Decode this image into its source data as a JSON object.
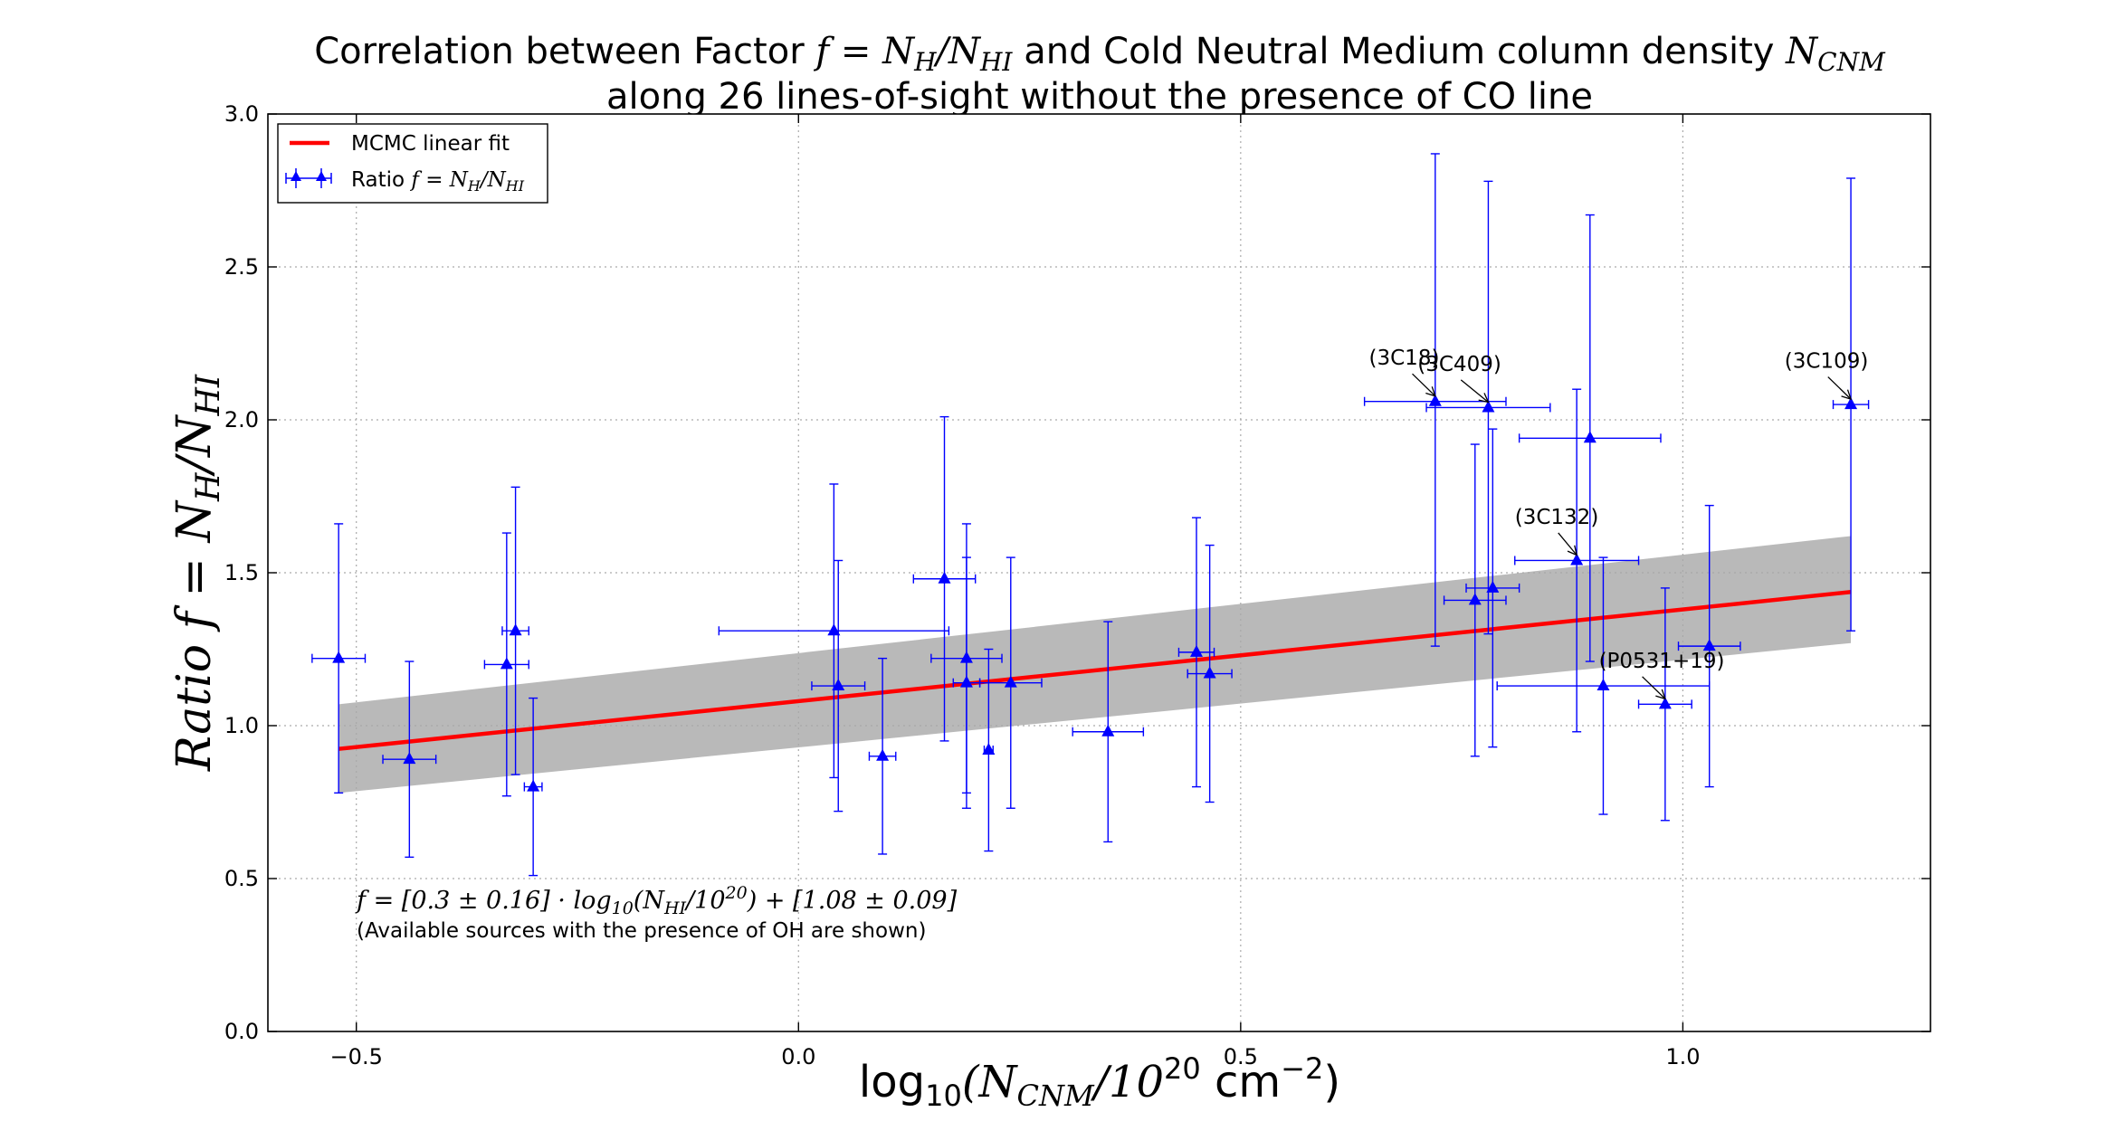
{
  "chart_data": {
    "type": "scatter",
    "title_prefix": "Correlation between Factor ",
    "title_math1": "f = N",
    "title_sub_h": "H",
    "title_slash": "/N",
    "title_sub_hi": "HI",
    "title_middle": " and Cold Neutral Medium column density ",
    "title_math2": "N",
    "title_sub_cnm": "CNM",
    "title_line2": "along 26 lines-of-sight without the presence of CO line",
    "xlabel_prefix": "log",
    "xlabel_sub": "10",
    "xlabel_math": "(N",
    "xlabel_sub_cnm": "CNM",
    "xlabel_rest": "/10",
    "xlabel_sup20": "20",
    "xlabel_unit": " cm",
    "xlabel_sup_neg2": "−2",
    "xlabel_close": ")",
    "ylabel_ratio": "Ratio",
    "ylabel_f": " f = N",
    "ylabel_sub_h": "H",
    "ylabel_slash": "/N",
    "ylabel_sub_hi": "HI",
    "xlim": [
      -0.6,
      1.28
    ],
    "ylim": [
      0.0,
      3.0
    ],
    "xticks": [
      -0.5,
      0.0,
      0.5,
      1.0
    ],
    "xtick_labels": [
      "−0.5",
      "0.0",
      "0.5",
      "1.0"
    ],
    "yticks": [
      0.0,
      0.5,
      1.0,
      1.5,
      2.0,
      2.5,
      3.0
    ],
    "ytick_labels": [
      "0.0",
      "0.5",
      "1.0",
      "1.5",
      "2.0",
      "2.5",
      "3.0"
    ],
    "grid": true,
    "legend_position": "top-left",
    "legend": {
      "fit_label": "MCMC linear fit",
      "ratio_label": "Ratio ",
      "ratio_math": "f = N",
      "ratio_sub_h": "H",
      "ratio_slash": "/N",
      "ratio_sub_hi": "HI"
    },
    "colors": {
      "points": "#0000ff",
      "fit": "#ff0000",
      "band": "#a8a8a8"
    },
    "fit": {
      "slope": 0.3,
      "intercept": 1.08,
      "x_range": [
        -0.52,
        1.19
      ]
    },
    "band": {
      "x": [
        -0.52,
        1.19
      ],
      "upper": [
        1.07,
        1.62
      ],
      "lower": [
        0.78,
        1.27
      ]
    },
    "series": [
      {
        "points": [
          {
            "x": -0.52,
            "y": 1.22,
            "xerr": 0.03,
            "yerr_lo": 0.44,
            "yerr_hi": 0.44
          },
          {
            "x": -0.44,
            "y": 0.89,
            "xerr": 0.03,
            "yerr_lo": 0.32,
            "yerr_hi": 0.32
          },
          {
            "x": -0.33,
            "y": 1.2,
            "xerr": 0.025,
            "yerr_lo": 0.43,
            "yerr_hi": 0.43
          },
          {
            "x": -0.32,
            "y": 1.31,
            "xerr": 0.015,
            "yerr_lo": 0.47,
            "yerr_hi": 0.47
          },
          {
            "x": -0.3,
            "y": 0.8,
            "xerr": 0.01,
            "yerr_lo": 0.29,
            "yerr_hi": 0.29
          },
          {
            "x": 0.04,
            "y": 1.31,
            "xerr": 0.13,
            "yerr_lo": 0.48,
            "yerr_hi": 0.48
          },
          {
            "x": 0.045,
            "y": 1.13,
            "xerr": 0.03,
            "yerr_lo": 0.41,
            "yerr_hi": 0.41
          },
          {
            "x": 0.095,
            "y": 0.9,
            "xerr": 0.015,
            "yerr_lo": 0.32,
            "yerr_hi": 0.32
          },
          {
            "x": 0.165,
            "y": 1.48,
            "xerr": 0.035,
            "yerr_lo": 0.53,
            "yerr_hi": 0.53
          },
          {
            "x": 0.19,
            "y": 1.22,
            "xerr": 0.04,
            "yerr_lo": 0.44,
            "yerr_hi": 0.44
          },
          {
            "x": 0.19,
            "y": 1.14,
            "xerr": 0.015,
            "yerr_lo": 0.41,
            "yerr_hi": 0.41
          },
          {
            "x": 0.215,
            "y": 0.92,
            "xerr": 0.005,
            "yerr_lo": 0.33,
            "yerr_hi": 0.33
          },
          {
            "x": 0.24,
            "y": 1.14,
            "xerr": 0.035,
            "yerr_lo": 0.41,
            "yerr_hi": 0.41
          },
          {
            "x": 0.35,
            "y": 0.98,
            "xerr": 0.04,
            "yerr_lo": 0.36,
            "yerr_hi": 0.36
          },
          {
            "x": 0.45,
            "y": 1.24,
            "xerr": 0.02,
            "yerr_lo": 0.44,
            "yerr_hi": 0.44
          },
          {
            "x": 0.465,
            "y": 1.17,
            "xerr": 0.025,
            "yerr_lo": 0.42,
            "yerr_hi": 0.42
          },
          {
            "x": 0.72,
            "y": 2.06,
            "xerr": 0.08,
            "yerr_lo": 0.8,
            "yerr_hi": 0.81
          },
          {
            "x": 0.765,
            "y": 1.41,
            "xerr": 0.035,
            "yerr_lo": 0.51,
            "yerr_hi": 0.51
          },
          {
            "x": 0.78,
            "y": 2.04,
            "xerr": 0.07,
            "yerr_lo": 0.74,
            "yerr_hi": 0.74
          },
          {
            "x": 0.785,
            "y": 1.45,
            "xerr": 0.03,
            "yerr_lo": 0.52,
            "yerr_hi": 0.52
          },
          {
            "x": 0.88,
            "y": 1.54,
            "xerr": 0.07,
            "yerr_lo": 0.56,
            "yerr_hi": 0.56
          },
          {
            "x": 0.895,
            "y": 1.94,
            "xerr": 0.08,
            "yerr_lo": 0.73,
            "yerr_hi": 0.73
          },
          {
            "x": 0.91,
            "y": 1.13,
            "xerr": 0.12,
            "yerr_lo": 0.42,
            "yerr_hi": 0.42
          },
          {
            "x": 0.98,
            "y": 1.07,
            "xerr": 0.03,
            "yerr_lo": 0.38,
            "yerr_hi": 0.38
          },
          {
            "x": 1.03,
            "y": 1.26,
            "xerr": 0.035,
            "yerr_lo": 0.46,
            "yerr_hi": 0.46
          },
          {
            "x": 1.19,
            "y": 2.05,
            "xerr": 0.02,
            "yerr_lo": 0.74,
            "yerr_hi": 0.74
          }
        ]
      }
    ],
    "annotations": [
      {
        "text": "(3C18)",
        "x": 0.72,
        "y": 2.06,
        "text_x": 0.645,
        "text_y": 2.18
      },
      {
        "text": "(3C409)",
        "x": 0.78,
        "y": 2.04,
        "text_x": 0.7,
        "text_y": 2.16
      },
      {
        "text": "(3C109)",
        "x": 1.19,
        "y": 2.05,
        "text_x": 1.115,
        "text_y": 2.17
      },
      {
        "text": "(3C132)",
        "x": 0.88,
        "y": 1.54,
        "text_x": 0.81,
        "text_y": 1.66
      },
      {
        "text": "(P0531+19)",
        "x": 0.98,
        "y": 1.07,
        "text_x": 0.905,
        "text_y": 1.19
      }
    ],
    "equation_f": "f",
    "equation_body": " = [0.3 ± 0.16] · log",
    "equation_sub10": "10",
    "equation_mid": "(N",
    "equation_sub_hi": "HI",
    "equation_rest": "/10",
    "equation_sup20": "20",
    "equation_tail": ") + [1.08 ± 0.09]",
    "note": "(Available sources with the presence of OH are shown)"
  }
}
